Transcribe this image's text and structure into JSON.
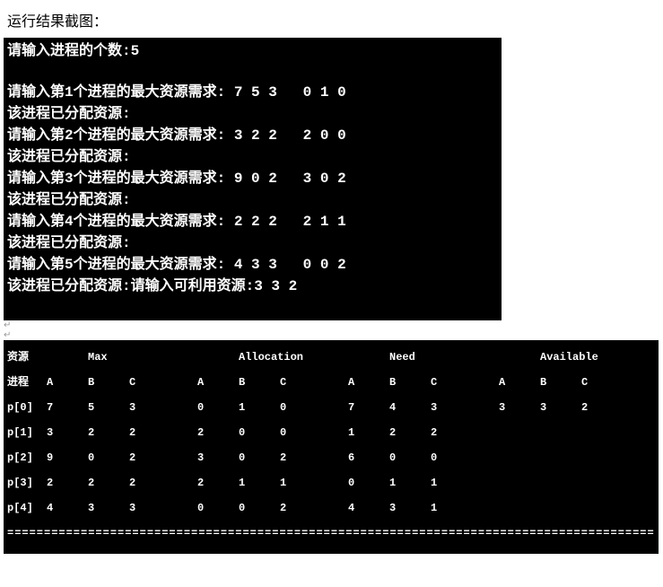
{
  "heading": "运行结果截图：",
  "terminal1": {
    "count_prompt": "请输入进程的个数:",
    "count_value": "5",
    "max_prompt_prefix": "请输入第",
    "max_prompt_suffix": "个进程的最大资源需求:",
    "alloc_prompt": "该进程已分配资源:",
    "avail_prompt": "请输入可利用资源:",
    "avail_value": "3 3 2",
    "processes": [
      {
        "idx": "1",
        "max": "7 5 3",
        "alloc": "0 1 0"
      },
      {
        "idx": "2",
        "max": "3 2 2",
        "alloc": "2 0 0"
      },
      {
        "idx": "3",
        "max": "9 0 2",
        "alloc": "3 0 2"
      },
      {
        "idx": "4",
        "max": "2 2 2",
        "alloc": "2 1 1"
      },
      {
        "idx": "5",
        "max": "4 3 3",
        "alloc": "0 0 2"
      }
    ]
  },
  "terminal2": {
    "top_labels": {
      "res": "资源",
      "max": "Max",
      "alloc": "Allocation",
      "need": "Need",
      "avail": "Available"
    },
    "col_labels": {
      "proc": "进程",
      "a": "A",
      "b": "B",
      "c": "C"
    },
    "rows": [
      {
        "name": "p[0]",
        "max": [
          "7",
          "5",
          "3"
        ],
        "alloc": [
          "0",
          "1",
          "0"
        ],
        "need": [
          "7",
          "4",
          "3"
        ],
        "avail": [
          "3",
          "3",
          "2"
        ]
      },
      {
        "name": "p[1]",
        "max": [
          "3",
          "2",
          "2"
        ],
        "alloc": [
          "2",
          "0",
          "0"
        ],
        "need": [
          "1",
          "2",
          "2"
        ],
        "avail": [
          "",
          "",
          ""
        ]
      },
      {
        "name": "p[2]",
        "max": [
          "9",
          "0",
          "2"
        ],
        "alloc": [
          "3",
          "0",
          "2"
        ],
        "need": [
          "6",
          "0",
          "0"
        ],
        "avail": [
          "",
          "",
          ""
        ]
      },
      {
        "name": "p[3]",
        "max": [
          "2",
          "2",
          "2"
        ],
        "alloc": [
          "2",
          "1",
          "1"
        ],
        "need": [
          "0",
          "1",
          "1"
        ],
        "avail": [
          "",
          "",
          ""
        ]
      },
      {
        "name": "p[4]",
        "max": [
          "4",
          "3",
          "3"
        ],
        "alloc": [
          "0",
          "0",
          "2"
        ],
        "need": [
          "4",
          "3",
          "1"
        ],
        "avail": [
          "",
          "",
          ""
        ]
      }
    ],
    "divider": "========================================================================================================="
  },
  "colors": {
    "terminal_bg": "#000000",
    "terminal_fg": "#ffffff",
    "page_bg": "#ffffff",
    "heading_color": "#000000"
  }
}
